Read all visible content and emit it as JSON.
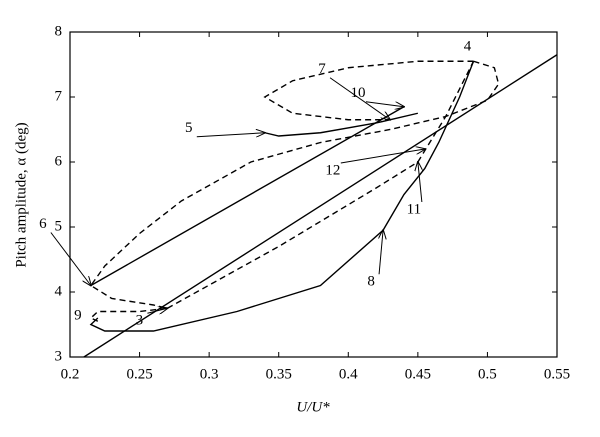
{
  "chart_data": {
    "type": "line",
    "x_label": "U/U*",
    "y_label": "Pitch amplitude, α (deg)",
    "xlim": [
      0.2,
      0.55
    ],
    "xticks": [
      0.2,
      0.25,
      0.3,
      0.35,
      0.4,
      0.45,
      0.5,
      0.55
    ],
    "ylim": [
      3,
      8
    ],
    "yticks": [
      3,
      4,
      5,
      6,
      7,
      8
    ],
    "series": [
      {
        "color": "#000000",
        "dashed": false,
        "x": [
          0.21,
          0.55
        ],
        "values": [
          3.0,
          7.65
        ]
      },
      {
        "color": "#000000",
        "dashed": false,
        "x": [
          0.215,
          0.44
        ],
        "values": [
          4.1,
          6.85
        ]
      },
      {
        "color": "#000000",
        "dashed": false,
        "x": [
          0.34,
          0.35,
          0.38,
          0.42,
          0.45
        ],
        "values": [
          6.45,
          6.4,
          6.45,
          6.6,
          6.75
        ]
      },
      {
        "color": "#000000",
        "dashed": false,
        "x": [
          0.22,
          0.215,
          0.225,
          0.26,
          0.32,
          0.38,
          0.425,
          0.44,
          0.455,
          0.465,
          0.48,
          0.49
        ],
        "values": [
          3.6,
          3.5,
          3.4,
          3.4,
          3.7,
          4.1,
          4.95,
          5.5,
          5.9,
          6.3,
          7.0,
          7.55
        ]
      },
      {
        "color": "#000000",
        "dashed": true,
        "x": [
          0.49,
          0.505,
          0.508,
          0.5,
          0.47,
          0.43,
          0.38,
          0.33,
          0.28,
          0.25,
          0.225,
          0.215,
          0.23,
          0.26,
          0.27,
          0.25,
          0.22,
          0.215,
          0.22
        ],
        "values": [
          7.55,
          7.45,
          7.2,
          6.95,
          6.7,
          6.5,
          6.3,
          6.0,
          5.4,
          4.9,
          4.4,
          4.1,
          3.9,
          3.8,
          3.75,
          3.7,
          3.7,
          3.6,
          3.55
        ]
      },
      {
        "color": "#000000",
        "dashed": true,
        "x": [
          0.27,
          0.35,
          0.42,
          0.45,
          0.47,
          0.49
        ],
        "values": [
          3.75,
          4.7,
          5.6,
          6.0,
          6.7,
          7.55
        ]
      },
      {
        "color": "#000000",
        "dashed": true,
        "x": [
          0.49,
          0.45,
          0.4,
          0.36,
          0.34,
          0.36,
          0.4,
          0.43
        ],
        "values": [
          7.55,
          7.55,
          7.45,
          7.25,
          7.0,
          6.75,
          6.65,
          6.65
        ]
      }
    ],
    "annotations": [
      {
        "text": "3",
        "x": 0.27,
        "y": 3.75,
        "arrow": true
      },
      {
        "text": "4",
        "x": 0.49,
        "y": 7.55,
        "arrow": false
      },
      {
        "text": "5",
        "x": 0.34,
        "y": 6.45,
        "arrow": true
      },
      {
        "text": "6",
        "x": 0.215,
        "y": 4.1,
        "arrow": true
      },
      {
        "text": "7",
        "x": 0.43,
        "y": 6.65,
        "arrow": true
      },
      {
        "text": "8",
        "x": 0.425,
        "y": 4.95,
        "arrow": true
      },
      {
        "text": "9",
        "x": 0.22,
        "y": 3.6,
        "arrow": false
      },
      {
        "text": "10",
        "x": 0.44,
        "y": 6.85,
        "arrow": true
      },
      {
        "text": "11",
        "x": 0.45,
        "y": 6.0,
        "arrow": true
      },
      {
        "text": "12",
        "x": 0.455,
        "y": 6.2,
        "arrow": true
      }
    ]
  }
}
